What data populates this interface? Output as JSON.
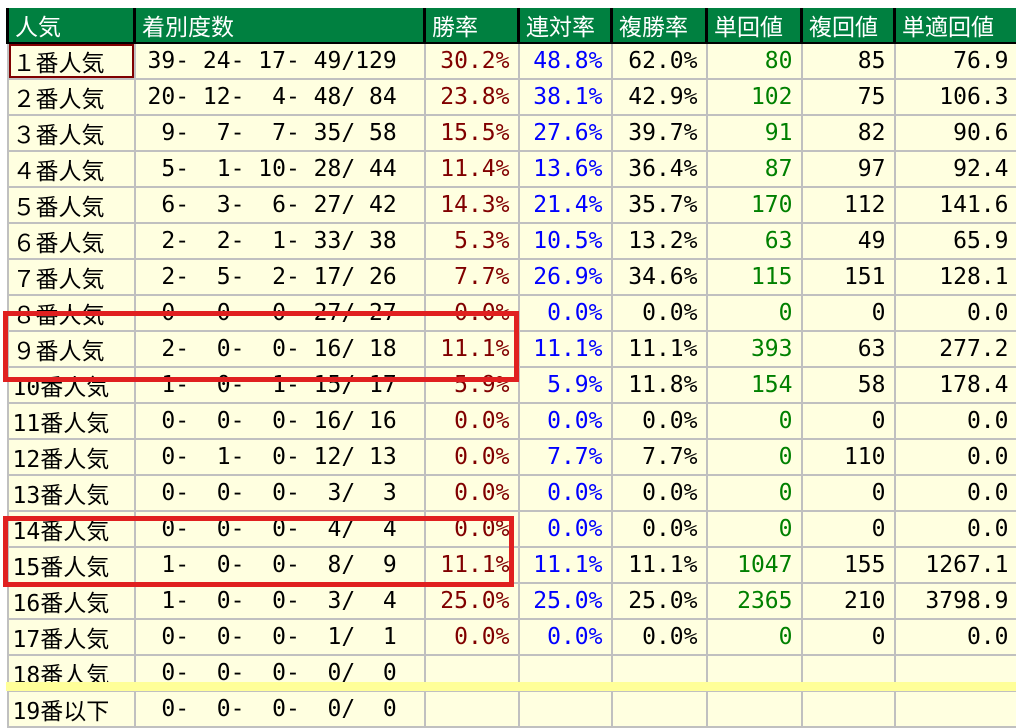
{
  "headers": [
    "人気",
    "着別度数",
    "勝率",
    "連対率",
    "複勝率",
    "単回値",
    "複回値",
    "単適回値"
  ],
  "colors": {
    "header_bg": "#008040",
    "cell_bg": "#ffffe0",
    "win": "#800000",
    "rentai": "#0000ff",
    "tan": "#008000",
    "highlight": "#e02020"
  },
  "rows": [
    [
      "１番人気",
      "39- 24- 17- 49/129",
      "30.2%",
      "48.8%",
      "62.0%",
      "80",
      "85",
      "76.9"
    ],
    [
      "２番人気",
      "20- 12-  4- 48/ 84",
      "23.8%",
      "38.1%",
      "42.9%",
      "102",
      "75",
      "106.3"
    ],
    [
      "３番人気",
      " 9-  7-  7- 35/ 58",
      "15.5%",
      "27.6%",
      "39.7%",
      "91",
      "82",
      "90.6"
    ],
    [
      "４番人気",
      " 5-  1- 10- 28/ 44",
      "11.4%",
      "13.6%",
      "36.4%",
      "87",
      "97",
      "92.4"
    ],
    [
      "５番人気",
      " 6-  3-  6- 27/ 42",
      "14.3%",
      "21.4%",
      "35.7%",
      "170",
      "112",
      "141.6"
    ],
    [
      "６番人気",
      " 2-  2-  1- 33/ 38",
      "5.3%",
      "10.5%",
      "13.2%",
      "63",
      "49",
      "65.9"
    ],
    [
      "７番人気",
      " 2-  5-  2- 17/ 26",
      "7.7%",
      "26.9%",
      "34.6%",
      "115",
      "151",
      "128.1"
    ],
    [
      "８番人気",
      " 0-  0-  0- 27/ 27",
      "0.0%",
      "0.0%",
      "0.0%",
      "0",
      "0",
      "0.0"
    ],
    [
      "９番人気",
      " 2-  0-  0- 16/ 18",
      "11.1%",
      "11.1%",
      "11.1%",
      "393",
      "63",
      "277.2"
    ],
    [
      "10番人気",
      " 1-  0-  1- 15/ 17",
      "5.9%",
      "5.9%",
      "11.8%",
      "154",
      "58",
      "178.4"
    ],
    [
      "11番人気",
      " 0-  0-  0- 16/ 16",
      "0.0%",
      "0.0%",
      "0.0%",
      "0",
      "0",
      "0.0"
    ],
    [
      "12番人気",
      " 0-  1-  0- 12/ 13",
      "0.0%",
      "7.7%",
      "7.7%",
      "0",
      "110",
      "0.0"
    ],
    [
      "13番人気",
      " 0-  0-  0-  3/  3",
      "0.0%",
      "0.0%",
      "0.0%",
      "0",
      "0",
      "0.0"
    ],
    [
      "14番人気",
      " 0-  0-  0-  4/  4",
      "0.0%",
      "0.0%",
      "0.0%",
      "0",
      "0",
      "0.0"
    ],
    [
      "15番人気",
      " 1-  0-  0-  8/  9",
      "11.1%",
      "11.1%",
      "11.1%",
      "1047",
      "155",
      "1267.1"
    ],
    [
      "16番人気",
      " 1-  0-  0-  3/  4",
      "25.0%",
      "25.0%",
      "25.0%",
      "2365",
      "210",
      "3798.9"
    ],
    [
      "17番人気",
      " 0-  0-  0-  1/  1",
      "0.0%",
      "0.0%",
      "0.0%",
      "0",
      "0",
      "0.0"
    ],
    [
      "18番人気",
      " 0-  0-  0-  0/  0",
      "",
      "",
      "",
      "",
      "",
      ""
    ],
    [
      "19番以下",
      " 0-  0-  0-  0/  0",
      "",
      "",
      "",
      "",
      "",
      ""
    ]
  ]
}
